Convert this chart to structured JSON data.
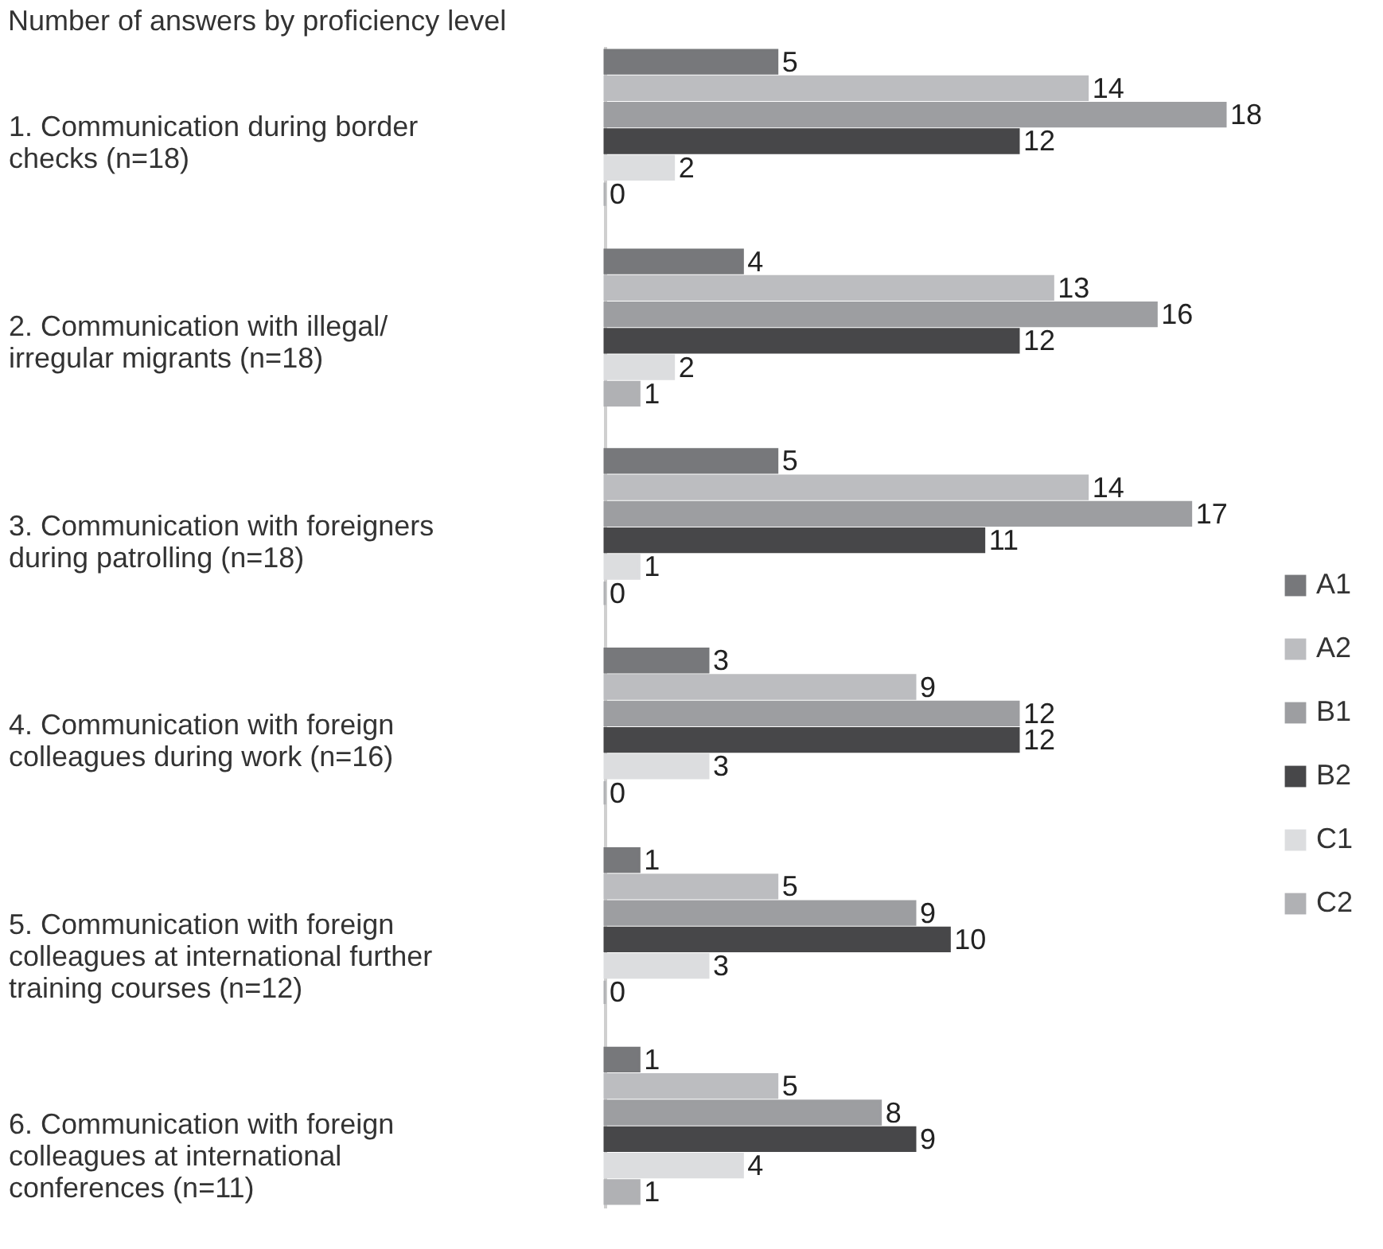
{
  "chart_data": {
    "type": "bar",
    "orientation": "horizontal",
    "title": "Number of answers by proficiency level",
    "categories": [
      "1. Communication during border checks (n=18)",
      "2. Communication with illegal/ irregular migrants (n=18)",
      "3. Communication with foreigners during patrolling  (n=18)",
      "4. Communication with foreign colleagues during work (n=16)",
      "5. Communication with foreign colleagues at international further training courses (n=12)",
      "6. Communication with foreign colleagues at international conferences (n=11)"
    ],
    "series": [
      {
        "name": "A1",
        "color": "#77787b",
        "values": [
          5,
          4,
          5,
          3,
          1,
          1
        ]
      },
      {
        "name": "A2",
        "color": "#bcbdc0",
        "values": [
          14,
          13,
          14,
          9,
          5,
          5
        ]
      },
      {
        "name": "B1",
        "color": "#9d9ea1",
        "values": [
          18,
          16,
          17,
          12,
          9,
          8
        ]
      },
      {
        "name": "B2",
        "color": "#474749",
        "values": [
          12,
          12,
          11,
          12,
          10,
          9
        ]
      },
      {
        "name": "C1",
        "color": "#dcdddf",
        "values": [
          2,
          2,
          1,
          3,
          3,
          4
        ]
      },
      {
        "name": "C2",
        "color": "#b0b1b4",
        "values": [
          0,
          1,
          0,
          0,
          0,
          1
        ]
      }
    ],
    "data_labels": true,
    "legend": "bottom right",
    "grid": false,
    "tick_labels": "y"
  }
}
